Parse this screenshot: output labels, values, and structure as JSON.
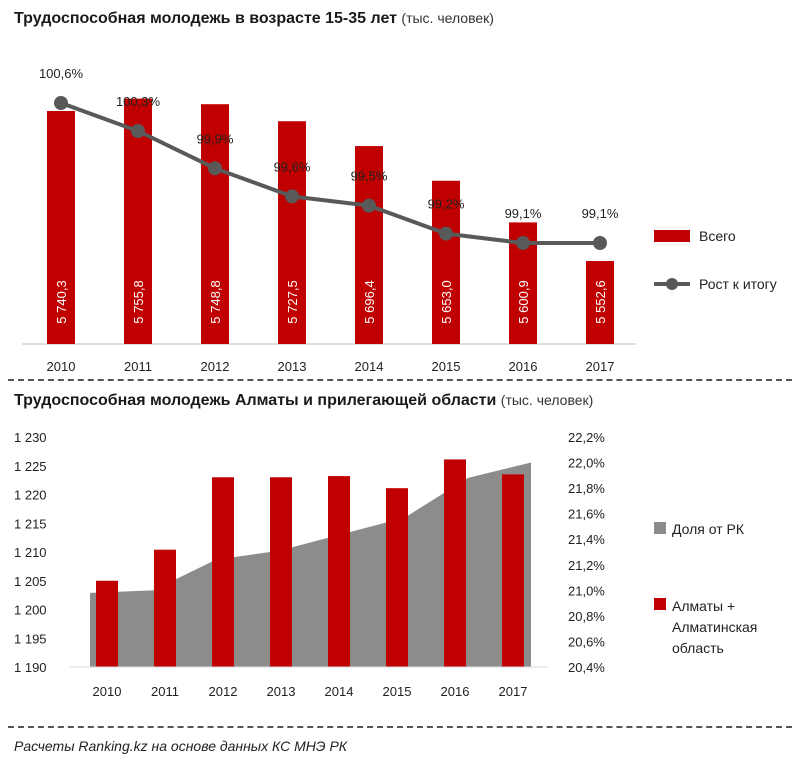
{
  "charts_titles": {
    "chart1": {
      "title": "Трудоспособная молодежь в возрасте 15-35 лет",
      "unit": "(тыс. человек)"
    },
    "chart2": {
      "title": "Трудоспособная молодежь Алматы и прилегающей области",
      "unit": "(тыс. человек)"
    }
  },
  "source": "Расчеты Ranking.kz на основе данных КС МНЭ РК",
  "colors": {
    "bar": "#c00000",
    "line": "#595959",
    "area": "#8c8c8c"
  },
  "chart_data": [
    {
      "type": "bar",
      "title": "Трудоспособная молодежь в возрасте 15-35 лет (тыс. человек)",
      "categories": [
        "2010",
        "2011",
        "2012",
        "2013",
        "2014",
        "2015",
        "2016",
        "2017"
      ],
      "series": [
        {
          "name": "Всего",
          "type": "bar",
          "values": [
            5740.3,
            5755.8,
            5748.8,
            5727.5,
            5696.4,
            5653.0,
            5600.9,
            5552.6
          ],
          "labels": [
            "5 740,3",
            "5 755,8",
            "5 748,8",
            "5 727,5",
            "5 696,4",
            "5 653,0",
            "5 600,9",
            "5 552,6"
          ]
        },
        {
          "name": "Рост к итогу",
          "type": "line",
          "values": [
            100.6,
            100.3,
            99.9,
            99.6,
            99.5,
            99.2,
            99.1,
            99.1
          ],
          "labels": [
            "100,6%",
            "100,3%",
            "99,9%",
            "99,6%",
            "99,5%",
            "99,2%",
            "99,1%",
            "99,1%"
          ]
        }
      ],
      "legend": "right"
    },
    {
      "type": "bar",
      "title": "Трудоспособная молодежь Алматы и прилегающей области (тыс. человек)",
      "categories": [
        "2010",
        "2011",
        "2012",
        "2013",
        "2014",
        "2015",
        "2016",
        "2017"
      ],
      "y_ticks": [
        "1 190",
        "1 195",
        "1 200",
        "1 205",
        "1 210",
        "1 215",
        "1 220",
        "1 225",
        "1 230"
      ],
      "ylim": [
        1190,
        1230
      ],
      "y2_ticks": [
        "20,4%",
        "20,6%",
        "20,8%",
        "21,0%",
        "21,2%",
        "21,4%",
        "21,6%",
        "21,8%",
        "22,0%",
        "22,2%"
      ],
      "y2lim": [
        20.4,
        22.2
      ],
      "series": [
        {
          "name": "Доля от РК",
          "type": "area",
          "axis": "right",
          "values": [
            20.98,
            21.0,
            21.24,
            21.31,
            21.44,
            21.57,
            21.88,
            22.0
          ]
        },
        {
          "name": "Алматы + Алматинская область",
          "type": "bar",
          "axis": "left",
          "values": [
            1205.0,
            1210.4,
            1223.0,
            1223.0,
            1223.2,
            1221.1,
            1226.1,
            1223.5
          ]
        }
      ],
      "legend_lines": [
        "Алматы +",
        "Алматинская",
        "область"
      ],
      "legend": "right"
    }
  ]
}
